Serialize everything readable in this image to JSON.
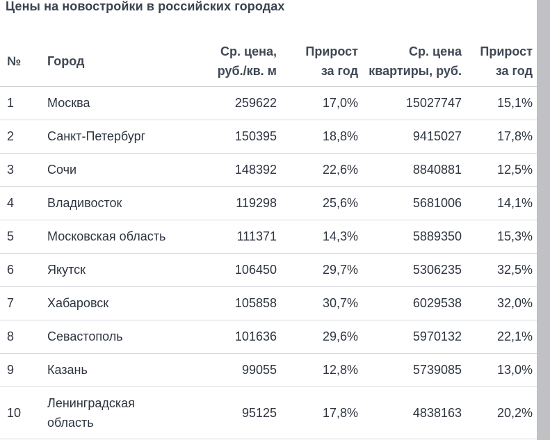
{
  "title": "Цены на новостройки в российских городах",
  "columns": {
    "num": "№",
    "city": "Город",
    "price_per_m_line1": "Ср. цена,",
    "price_per_m_line2": "руб./кв. м",
    "growth1_line1": "Прирост",
    "growth1_line2": "за год",
    "flat_price_line1": "Ср. цена",
    "flat_price_line2": "квартиры, руб.",
    "growth2_line1": "Прирост",
    "growth2_line2": "за год"
  },
  "rows": [
    {
      "num": "1",
      "city": "Москва",
      "city2": "",
      "price_per_m": "259622",
      "growth1": "17,0%",
      "flat_price": "15027747",
      "growth2": "15,1%"
    },
    {
      "num": "2",
      "city": "Санкт-Петербург",
      "city2": "",
      "price_per_m": "150395",
      "growth1": "18,8%",
      "flat_price": "9415027",
      "growth2": "17,8%"
    },
    {
      "num": "3",
      "city": "Сочи",
      "city2": "",
      "price_per_m": "148392",
      "growth1": "22,6%",
      "flat_price": "8840881",
      "growth2": "12,5%"
    },
    {
      "num": "4",
      "city": "Владивосток",
      "city2": "",
      "price_per_m": "119298",
      "growth1": "25,6%",
      "flat_price": "5681006",
      "growth2": "14,1%"
    },
    {
      "num": "5",
      "city": "Московская область",
      "city2": "",
      "price_per_m": "111371",
      "growth1": "14,3%",
      "flat_price": "5889350",
      "growth2": "15,3%"
    },
    {
      "num": "6",
      "city": "Якутск",
      "city2": "",
      "price_per_m": "106450",
      "growth1": "29,7%",
      "flat_price": "5306235",
      "growth2": "32,5%"
    },
    {
      "num": "7",
      "city": "Хабаровск",
      "city2": "",
      "price_per_m": "105858",
      "growth1": "30,7%",
      "flat_price": "6029538",
      "growth2": "32,0%"
    },
    {
      "num": "8",
      "city": "Севастополь",
      "city2": "",
      "price_per_m": "101636",
      "growth1": "29,6%",
      "flat_price": "5970132",
      "growth2": "22,1%"
    },
    {
      "num": "9",
      "city": "Казань",
      "city2": "",
      "price_per_m": "99055",
      "growth1": "12,8%",
      "flat_price": "5739085",
      "growth2": "13,0%"
    },
    {
      "num": "10",
      "city": "Ленинградская",
      "city2": "область",
      "price_per_m": "95125",
      "growth1": "17,8%",
      "flat_price": "4838163",
      "growth2": "20,2%"
    }
  ]
}
